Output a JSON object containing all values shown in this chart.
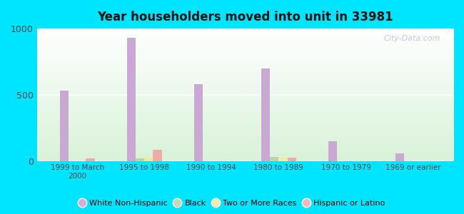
{
  "title": "Year householders moved into unit in 33981",
  "categories": [
    "1999 to March\n2000",
    "1995 to 1998",
    "1990 to 1994",
    "1980 to 1989",
    "1970 to 1979",
    "1969 or earlier"
  ],
  "series": {
    "White Non-Hispanic": [
      530,
      930,
      580,
      700,
      150,
      55
    ],
    "Black": [
      0,
      18,
      0,
      30,
      0,
      0
    ],
    "Two or More Races": [
      0,
      22,
      0,
      22,
      0,
      0
    ],
    "Hispanic or Latino": [
      18,
      85,
      0,
      22,
      0,
      0
    ]
  },
  "colors": {
    "White Non-Hispanic": "#c9a8d4",
    "Black": "#b8d4aa",
    "Two or More Races": "#eeee99",
    "Hispanic or Latino": "#f0aaaa"
  },
  "legend_colors": {
    "White Non-Hispanic": "#daaada",
    "Black": "#c8d8b0",
    "Two or More Races": "#f0f0aa",
    "Hispanic or Latino": "#f4b8b8"
  },
  "ylim": [
    0,
    1000
  ],
  "yticks": [
    0,
    500,
    1000
  ],
  "background_color": "#00e5ff",
  "bar_width": 0.13,
  "watermark": "City-Data.com"
}
